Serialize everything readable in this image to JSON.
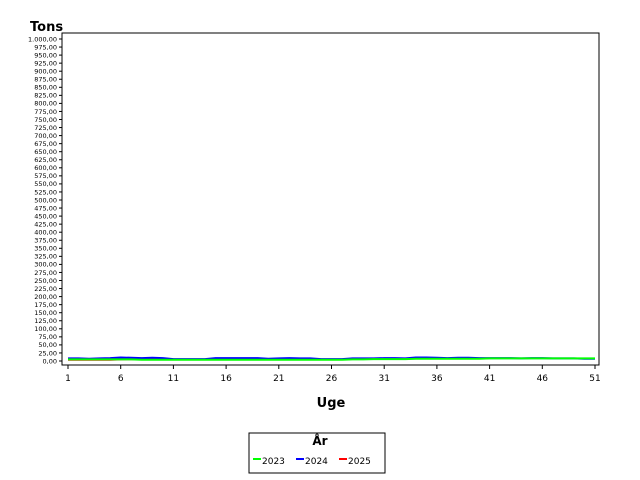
{
  "chart_data": {
    "type": "line",
    "ylabel": "Tons",
    "xlabel": "Uge",
    "ylim": [
      0,
      1000
    ],
    "y_ticks": [
      "1.000,00",
      "975,00",
      "950,00",
      "925,00",
      "900,00",
      "875,00",
      "850,00",
      "825,00",
      "800,00",
      "775,00",
      "750,00",
      "725,00",
      "700,00",
      "675,00",
      "650,00",
      "625,00",
      "600,00",
      "575,00",
      "550,00",
      "525,00",
      "500,00",
      "475,00",
      "450,00",
      "425,00",
      "400,00",
      "375,00",
      "350,00",
      "325,00",
      "300,00",
      "275,00",
      "250,00",
      "225,00",
      "200,00",
      "175,00",
      "150,00",
      "125,00",
      "100,00",
      "75,00",
      "50,00",
      "25,00",
      "0,00"
    ],
    "x_ticks": [
      "1",
      "6",
      "11",
      "16",
      "21",
      "26",
      "31",
      "36",
      "41",
      "46",
      "51"
    ],
    "legend_title": "År",
    "legend_position": "bottom",
    "series": [
      {
        "name": "2023",
        "color": "#00ff00",
        "x": [
          1,
          2,
          3,
          4,
          5,
          6,
          7,
          8,
          9,
          10,
          11,
          12,
          13,
          14,
          15,
          16,
          17,
          18,
          19,
          20,
          21,
          22,
          23,
          24,
          25,
          26,
          27,
          28,
          29,
          30,
          31,
          32,
          33,
          34,
          35,
          36,
          37,
          38,
          39,
          40,
          41,
          42,
          43,
          44,
          45,
          46,
          47,
          48,
          49,
          50,
          51
        ],
        "values": [
          5,
          5,
          5,
          5,
          5,
          5,
          5,
          4,
          4,
          4,
          4,
          4,
          4,
          4,
          4,
          4,
          4,
          4,
          4,
          4,
          4,
          4,
          4,
          4,
          4,
          4,
          4,
          5,
          5,
          6,
          6,
          6,
          6,
          7,
          7,
          7,
          7,
          7,
          7,
          7,
          8,
          8,
          8,
          8,
          8,
          8,
          8,
          8,
          8,
          8,
          8
        ]
      },
      {
        "name": "2024",
        "color": "#0000ff",
        "x": [
          1,
          2,
          3,
          4,
          5,
          6,
          7,
          8,
          9,
          10,
          11,
          12,
          13,
          14,
          15,
          16,
          17,
          18,
          19,
          20,
          21,
          22,
          23,
          24,
          25,
          26,
          27,
          28,
          29,
          30,
          31,
          32,
          33,
          34,
          35,
          36,
          37,
          38,
          39,
          40,
          41,
          42,
          43,
          44,
          45,
          46,
          47,
          48,
          49,
          50,
          51
        ],
        "values": [
          8,
          8,
          7,
          8,
          9,
          11,
          10,
          9,
          10,
          9,
          6,
          6,
          6,
          6,
          9,
          9,
          9,
          9,
          9,
          7,
          8,
          9,
          8,
          8,
          6,
          6,
          6,
          8,
          8,
          8,
          9,
          9,
          8,
          11,
          11,
          10,
          9,
          10,
          10,
          9,
          9,
          9,
          9,
          8,
          9,
          9,
          8,
          8,
          8,
          7,
          7
        ]
      },
      {
        "name": "2025",
        "color": "#ff0000",
        "x": [
          1,
          2,
          3,
          4,
          5,
          6,
          7,
          8,
          9,
          10,
          11
        ],
        "values": [
          4,
          4,
          4,
          4,
          4,
          5,
          6,
          5,
          6,
          5,
          5
        ]
      }
    ]
  }
}
